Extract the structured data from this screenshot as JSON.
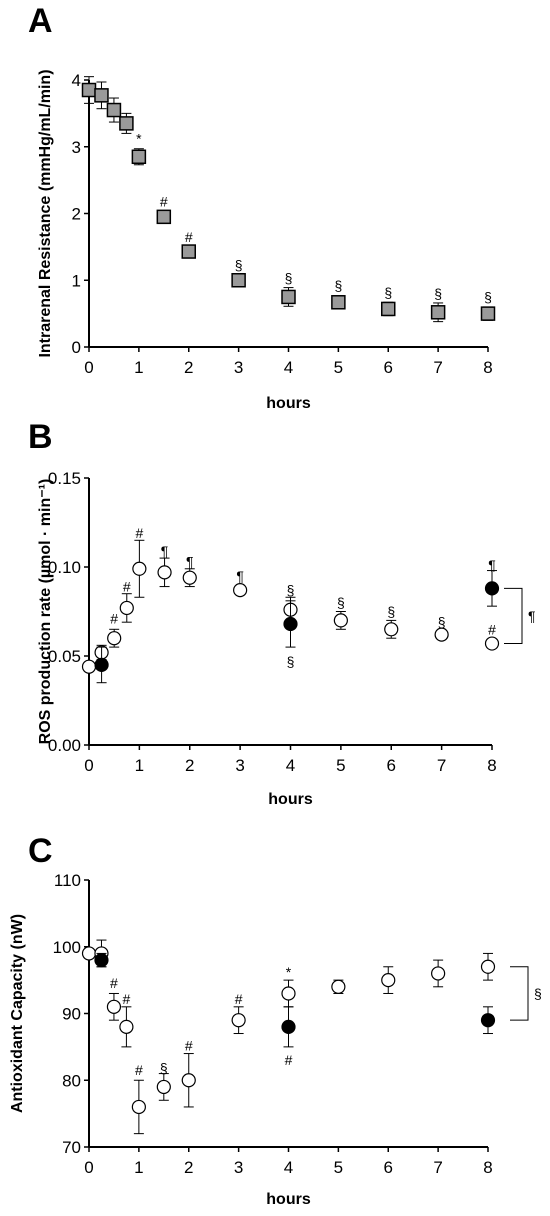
{
  "chart_data": [
    {
      "panel": "A",
      "type": "scatter",
      "xlabel": "hours",
      "ylabel": "Intrarenal Resistance (mmHg/mL/min)",
      "xlim": [
        0,
        8
      ],
      "ylim": [
        0,
        4
      ],
      "xticks": [
        "0",
        "1",
        "2",
        "3",
        "4",
        "5",
        "6",
        "7",
        "8"
      ],
      "yticks": [
        "0",
        "1",
        "2",
        "3",
        "4"
      ],
      "marker": "square-gray",
      "x": [
        0,
        0.25,
        0.5,
        0.75,
        1,
        1.5,
        2,
        3,
        4,
        5,
        6,
        7,
        8
      ],
      "y": [
        3.85,
        3.77,
        3.55,
        3.35,
        2.85,
        1.95,
        1.43,
        1.0,
        0.75,
        0.67,
        0.57,
        0.52,
        0.5
      ],
      "err": [
        0.2,
        0.2,
        0.18,
        0.15,
        0.12,
        0.07,
        0.06,
        0.1,
        0.14,
        0.1,
        0.1,
        0.14,
        0.1
      ],
      "annotations": [
        {
          "x": 1,
          "y": 3.12,
          "text": "*"
        },
        {
          "x": 1.5,
          "y": 2.18,
          "text": "#"
        },
        {
          "x": 2,
          "y": 1.65,
          "text": "#"
        },
        {
          "x": 3,
          "y": 1.23,
          "text": "§"
        },
        {
          "x": 4,
          "y": 1.03,
          "text": "§"
        },
        {
          "x": 5,
          "y": 0.92,
          "text": "§"
        },
        {
          "x": 6,
          "y": 0.82,
          "text": "§"
        },
        {
          "x": 7,
          "y": 0.8,
          "text": "§"
        },
        {
          "x": 8,
          "y": 0.75,
          "text": "§"
        }
      ]
    },
    {
      "panel": "B",
      "type": "scatter",
      "xlabel": "hours",
      "ylabel": "ROS production rate (µmol · min⁻¹)",
      "xlim": [
        0,
        8
      ],
      "ylim": [
        0,
        0.15
      ],
      "xticks": [
        "0",
        "1",
        "2",
        "3",
        "4",
        "5",
        "6",
        "7",
        "8"
      ],
      "yticks": [
        "0.00",
        "0.05",
        "0.10",
        "0.15"
      ],
      "series": [
        {
          "marker": "circle-open",
          "x": [
            0,
            0.25,
            0.5,
            0.75,
            1,
            1.5,
            2,
            3,
            4,
            5,
            6,
            7,
            8
          ],
          "y": [
            0.044,
            0.052,
            0.06,
            0.077,
            0.099,
            0.097,
            0.094,
            0.087,
            0.076,
            0.07,
            0.065,
            0.062,
            0.057
          ],
          "err": [
            0.0,
            0.004,
            0.005,
            0.008,
            0.016,
            0.008,
            0.005,
            0.0,
            0.007,
            0.005,
            0.005,
            0.0,
            0.0
          ]
        },
        {
          "marker": "circle-filled",
          "x": [
            0.25,
            4,
            8
          ],
          "y": [
            0.045,
            0.068,
            0.088
          ],
          "err": [
            0.01,
            0.013,
            0.01
          ]
        }
      ],
      "annotations": [
        {
          "x": 0.5,
          "y": 0.071,
          "text": "#"
        },
        {
          "x": 0.75,
          "y": 0.089,
          "text": "#"
        },
        {
          "x": 1,
          "y": 0.119,
          "text": "#"
        },
        {
          "x": 1.5,
          "y": 0.109,
          "text": "¶"
        },
        {
          "x": 2,
          "y": 0.103,
          "text": "¶"
        },
        {
          "x": 3,
          "y": 0.095,
          "text": "¶"
        },
        {
          "x": 4,
          "y": 0.087,
          "text": "§"
        },
        {
          "x": 4,
          "y": 0.047,
          "text": "§"
        },
        {
          "x": 5,
          "y": 0.08,
          "text": "§"
        },
        {
          "x": 6,
          "y": 0.075,
          "text": "§"
        },
        {
          "x": 7,
          "y": 0.069,
          "text": "§"
        },
        {
          "x": 8,
          "y": 0.101,
          "text": "¶"
        },
        {
          "x": 8,
          "y": 0.065,
          "text": "#"
        }
      ],
      "bracket": {
        "text": "¶",
        "y_top": 0.088,
        "y_bottom": 0.057
      }
    },
    {
      "panel": "C",
      "type": "scatter",
      "xlabel": "hours",
      "ylabel": "Antioxidant Capacity (nW)",
      "xlim": [
        0,
        8
      ],
      "ylim": [
        70,
        110
      ],
      "xticks": [
        "0",
        "1",
        "2",
        "3",
        "4",
        "5",
        "6",
        "7",
        "8"
      ],
      "yticks": [
        "70",
        "80",
        "90",
        "100",
        "110"
      ],
      "series": [
        {
          "marker": "circle-open",
          "x": [
            0,
            0.25,
            0.5,
            0.75,
            1,
            1.5,
            2,
            3,
            4,
            5,
            6,
            7,
            8
          ],
          "y": [
            99,
            99,
            91,
            88,
            76,
            79,
            80,
            89,
            93,
            94,
            95,
            96,
            97
          ],
          "err": [
            0,
            2,
            2,
            3,
            4,
            2,
            4,
            2,
            2,
            1,
            2,
            2,
            2
          ]
        },
        {
          "marker": "circle-filled",
          "x": [
            0.25,
            4,
            8
          ],
          "y": [
            98,
            88,
            89
          ],
          "err": [
            1,
            3,
            2
          ]
        }
      ],
      "annotations": [
        {
          "x": 0.5,
          "y": 94.6,
          "text": "#"
        },
        {
          "x": 0.75,
          "y": 92.2,
          "text": "#"
        },
        {
          "x": 1,
          "y": 81.5,
          "text": "#"
        },
        {
          "x": 1.5,
          "y": 81.8,
          "text": "§"
        },
        {
          "x": 2,
          "y": 85.2,
          "text": "#"
        },
        {
          "x": 3,
          "y": 92.2,
          "text": "#"
        },
        {
          "x": 4,
          "y": 96.2,
          "text": "*"
        },
        {
          "x": 4,
          "y": 83.0,
          "text": "#"
        }
      ],
      "bracket": {
        "text": "§",
        "y_top": 97,
        "y_bottom": 89
      }
    }
  ]
}
